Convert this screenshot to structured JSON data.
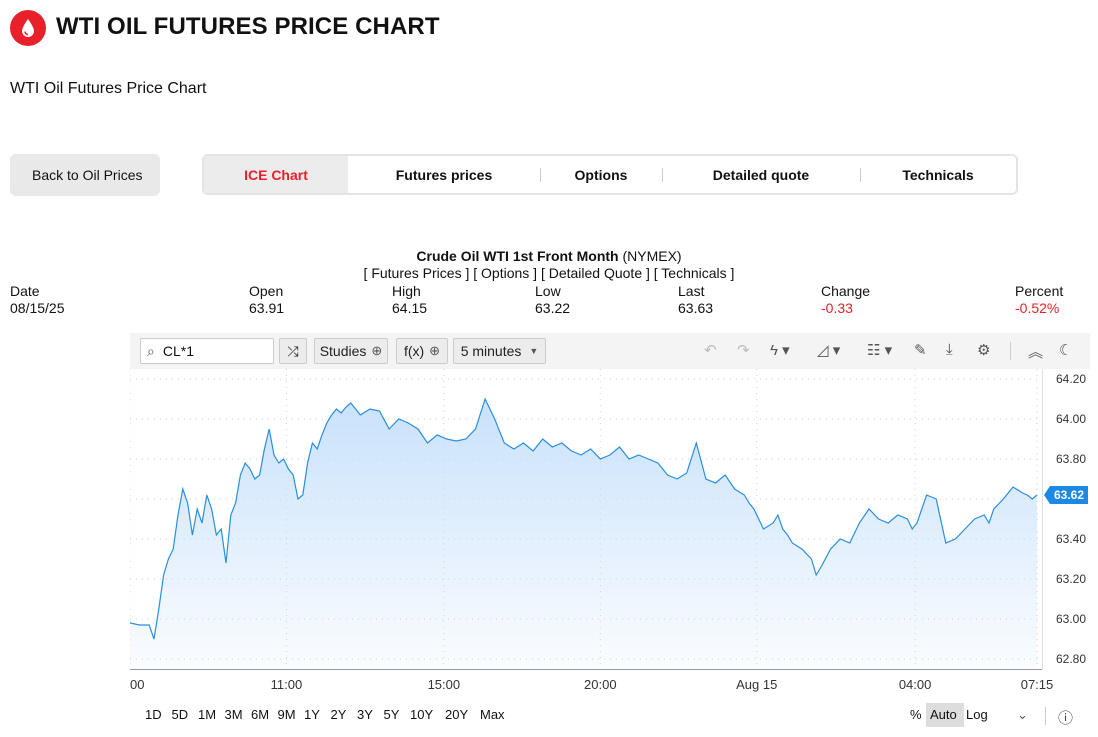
{
  "header": {
    "title": "WTI OIL FUTURES PRICE CHART",
    "subtitle": "WTI Oil Futures Price Chart"
  },
  "nav": {
    "back_icon": "",
    "back_label": "Back to Oil Prices",
    "tabs": [
      {
        "label": "ICE Chart",
        "active": true
      },
      {
        "label": "Futures prices"
      },
      {
        "label": "Options"
      },
      {
        "label": "Detailed quote"
      },
      {
        "label": "Technicals"
      }
    ]
  },
  "chart_header": {
    "title_bold": "Crude Oil WTI 1st Front Month",
    "title_rest": " (NYMEX)",
    "links_line": "[ Futures Prices ] [ Options ] [ Detailed Quote ] [ Technicals ]"
  },
  "quote": {
    "labels": {
      "date": "Date",
      "open": "Open",
      "high": "High",
      "low": "Low",
      "last": "Last",
      "change": "Change",
      "percent": "Percent"
    },
    "values": {
      "date": "08/15/25",
      "open": "63.91",
      "high": "64.15",
      "low": "63.22",
      "last": "63.63",
      "change": "-0.33",
      "percent": "-0.52%"
    }
  },
  "toolbar": {
    "symbol": "CL*1",
    "studies_label": "Studies",
    "fx_label": "f(x)",
    "interval_label": "5 minutes",
    "icons": [
      "search-icon",
      "compare-icon",
      "plus-circle-icon",
      "undo-icon",
      "redo-icon",
      "lightning-icon",
      "chart-style-icon",
      "layout-icon",
      "draw-icon",
      "download-icon",
      "gear-icon",
      "collapse-icon",
      "theme-icon"
    ]
  },
  "ranges": {
    "items": [
      "1D",
      "5D",
      "1M",
      "3M",
      "6M",
      "9M",
      "1Y",
      "2Y",
      "3Y",
      "5Y",
      "10Y",
      "20Y",
      "Max"
    ],
    "percent_label": "%",
    "auto_label": "Auto",
    "log_label": "Log"
  },
  "colors": {
    "accent": "#e8202a",
    "line": "#2a8ee0",
    "fill_top": "#c6e0fb",
    "badge": "#1e88e5"
  },
  "chart_data": {
    "type": "area",
    "ylim": [
      62.75,
      64.25
    ],
    "y_ticks": [
      "64.20",
      "64.00",
      "63.80",
      "63.60",
      "63.40",
      "63.20",
      "63.00",
      "62.80"
    ],
    "y_tick_values": [
      64.2,
      64.0,
      63.8,
      63.6,
      63.4,
      63.2,
      63.0,
      62.8
    ],
    "x_ticks": [
      "00",
      "11:00",
      "15:00",
      "20:00",
      "Aug 15",
      "04:00",
      "07:15"
    ],
    "x_tick_pos": [
      0,
      0.163,
      0.327,
      0.49,
      0.653,
      0.818,
      0.945
    ],
    "x_pos_max": 0.945,
    "last_label": "63.62",
    "last_value": 63.62,
    "x": [
      0,
      0.01,
      0.02,
      0.025,
      0.03,
      0.035,
      0.04,
      0.045,
      0.05,
      0.055,
      0.06,
      0.065,
      0.07,
      0.075,
      0.08,
      0.085,
      0.09,
      0.095,
      0.1,
      0.105,
      0.11,
      0.115,
      0.12,
      0.125,
      0.13,
      0.135,
      0.14,
      0.145,
      0.15,
      0.155,
      0.16,
      0.165,
      0.17,
      0.175,
      0.18,
      0.185,
      0.19,
      0.195,
      0.2,
      0.205,
      0.21,
      0.215,
      0.22,
      0.225,
      0.23,
      0.235,
      0.24,
      0.25,
      0.26,
      0.27,
      0.28,
      0.29,
      0.3,
      0.31,
      0.32,
      0.33,
      0.34,
      0.35,
      0.36,
      0.37,
      0.38,
      0.39,
      0.4,
      0.41,
      0.42,
      0.43,
      0.44,
      0.45,
      0.46,
      0.47,
      0.48,
      0.49,
      0.5,
      0.51,
      0.52,
      0.53,
      0.54,
      0.55,
      0.56,
      0.57,
      0.58,
      0.59,
      0.6,
      0.61,
      0.62,
      0.63,
      0.64,
      0.645,
      0.65,
      0.66,
      0.67,
      0.675,
      0.68,
      0.685,
      0.69,
      0.7,
      0.71,
      0.715,
      0.72,
      0.73,
      0.74,
      0.75,
      0.76,
      0.77,
      0.78,
      0.79,
      0.8,
      0.81,
      0.815,
      0.82,
      0.825,
      0.83,
      0.84,
      0.85,
      0.86,
      0.87,
      0.88,
      0.89,
      0.895,
      0.9,
      0.91,
      0.92,
      0.93,
      0.935,
      0.94,
      0.945
    ],
    "values": [
      62.98,
      62.97,
      62.97,
      62.9,
      63.05,
      63.22,
      63.3,
      63.35,
      63.52,
      63.65,
      63.58,
      63.42,
      63.55,
      63.48,
      63.62,
      63.55,
      63.42,
      63.45,
      63.28,
      63.52,
      63.58,
      63.72,
      63.78,
      63.75,
      63.7,
      63.72,
      63.85,
      63.95,
      63.82,
      63.78,
      63.8,
      63.75,
      63.72,
      63.6,
      63.62,
      63.78,
      63.88,
      63.85,
      63.92,
      63.98,
      64.02,
      64.05,
      64.03,
      64.06,
      64.08,
      64.05,
      64.02,
      64.05,
      64.04,
      63.95,
      64.0,
      63.98,
      63.95,
      63.88,
      63.92,
      63.9,
      63.89,
      63.9,
      63.95,
      64.1,
      64.0,
      63.88,
      63.85,
      63.88,
      63.84,
      63.9,
      63.86,
      63.88,
      63.84,
      63.82,
      63.85,
      63.8,
      63.82,
      63.86,
      63.8,
      63.82,
      63.8,
      63.78,
      63.72,
      63.7,
      63.73,
      63.88,
      63.7,
      63.68,
      63.72,
      63.65,
      63.62,
      63.58,
      63.55,
      63.45,
      63.48,
      63.52,
      63.45,
      63.42,
      63.38,
      63.35,
      63.3,
      63.22,
      63.26,
      63.35,
      63.4,
      63.38,
      63.48,
      63.55,
      63.5,
      63.48,
      63.52,
      63.5,
      63.45,
      63.48,
      63.55,
      63.62,
      63.6,
      63.38,
      63.4,
      63.45,
      63.5,
      63.52,
      63.48,
      63.55,
      63.6,
      63.66,
      63.63,
      63.62,
      63.6,
      63.62
    ]
  }
}
